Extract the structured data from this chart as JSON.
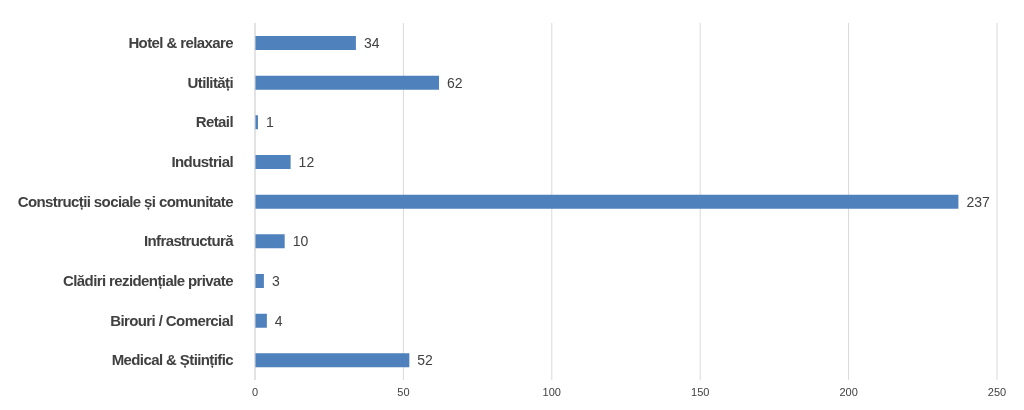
{
  "chart_data": {
    "type": "bar",
    "orientation": "horizontal",
    "categories": [
      "Hotel & relaxare",
      "Utilități",
      "Retail",
      "Industrial",
      "Construcții sociale și comunitate",
      "Infrastructură",
      "Clădiri rezidențiale private",
      "Birouri / Comercial",
      "Medical & Științific"
    ],
    "values": [
      34,
      62,
      1,
      12,
      237,
      10,
      3,
      4,
      52
    ],
    "color": "#4f81bd",
    "xlim": [
      0,
      250
    ],
    "xticks": [
      0,
      50,
      100,
      150,
      200,
      250
    ],
    "grid": "x",
    "data_labels": true
  }
}
